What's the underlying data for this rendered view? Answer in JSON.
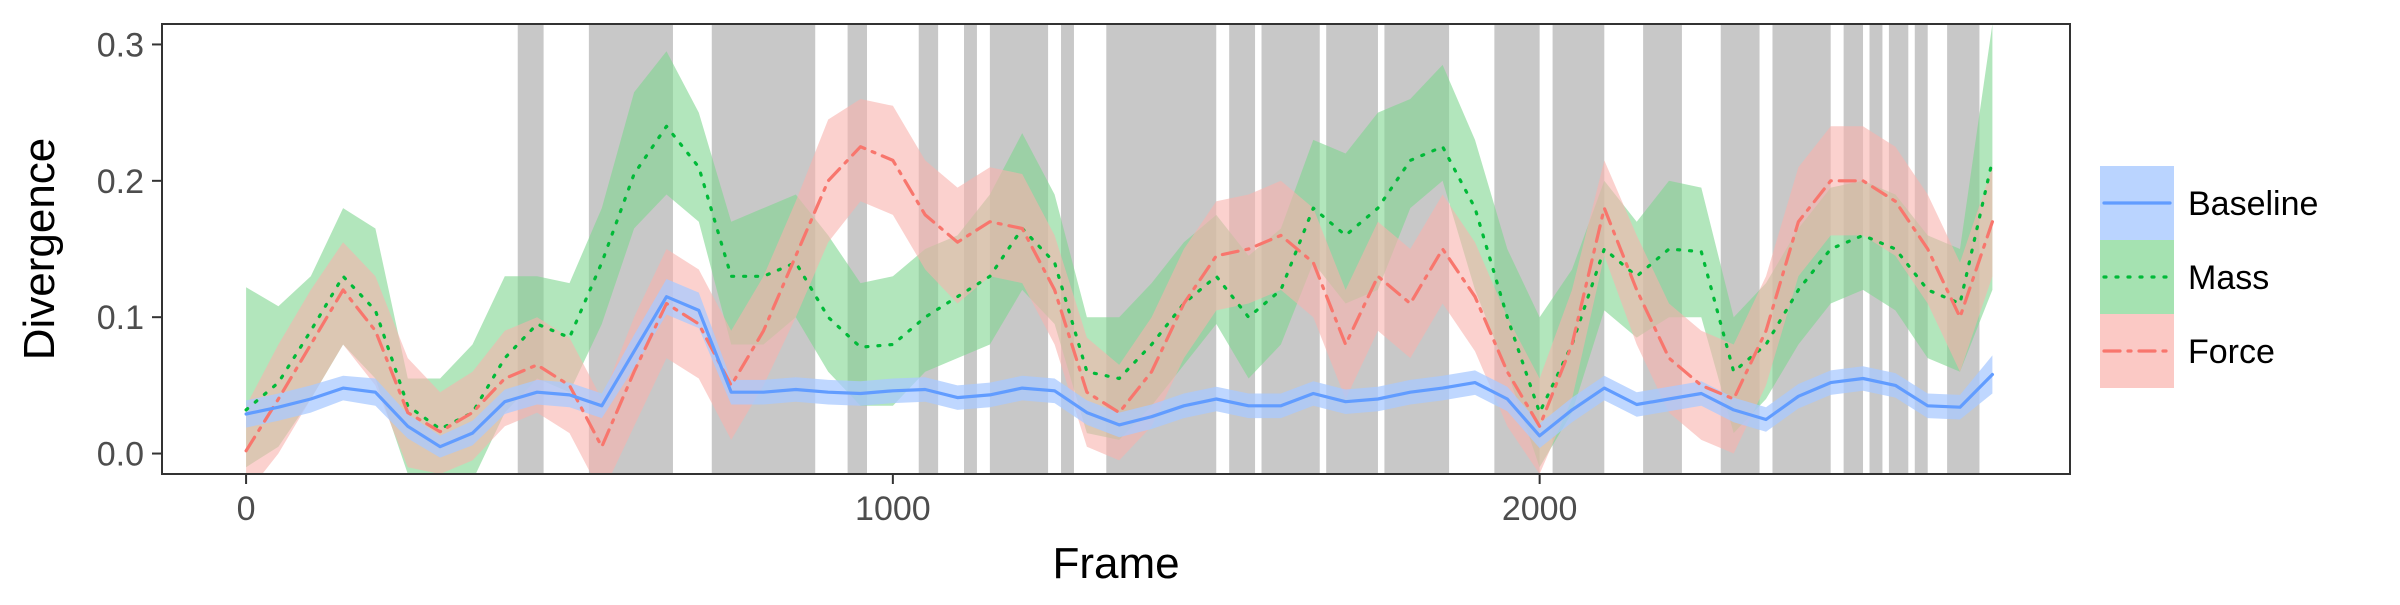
{
  "chart_data": {
    "type": "line",
    "title": "",
    "xlabel": "Frame",
    "ylabel": "Divergence",
    "xlim": [
      -130,
      2820
    ],
    "ylim": [
      -0.015,
      0.315
    ],
    "x_ticks": [
      0,
      1000,
      2000
    ],
    "y_ticks": [
      0.0,
      0.1,
      0.2,
      0.3
    ],
    "x_tick_labels": [
      "0",
      "1000",
      "2000"
    ],
    "y_tick_labels": [
      "0.0",
      "0.1",
      "0.2",
      "0.3"
    ],
    "grid": false,
    "legend_position": "right",
    "shaded_frame_intervals": [
      [
        420,
        460
      ],
      [
        530,
        660
      ],
      [
        720,
        880
      ],
      [
        930,
        960
      ],
      [
        1040,
        1070
      ],
      [
        1110,
        1130
      ],
      [
        1150,
        1240
      ],
      [
        1260,
        1280
      ],
      [
        1330,
        1500
      ],
      [
        1520,
        1560
      ],
      [
        1570,
        1660
      ],
      [
        1670,
        1750
      ],
      [
        1760,
        1860
      ],
      [
        1930,
        2000
      ],
      [
        2020,
        2100
      ],
      [
        2160,
        2220
      ],
      [
        2280,
        2340
      ],
      [
        2360,
        2450
      ],
      [
        2470,
        2500
      ],
      [
        2510,
        2530
      ],
      [
        2540,
        2570
      ],
      [
        2580,
        2600
      ],
      [
        2630,
        2680
      ]
    ],
    "x": [
      0,
      50,
      100,
      150,
      200,
      250,
      300,
      350,
      400,
      450,
      500,
      550,
      600,
      650,
      700,
      750,
      800,
      850,
      900,
      950,
      1000,
      1050,
      1100,
      1150,
      1200,
      1250,
      1300,
      1350,
      1400,
      1450,
      1500,
      1550,
      1600,
      1650,
      1700,
      1750,
      1800,
      1850,
      1900,
      1950,
      2000,
      2050,
      2100,
      2150,
      2200,
      2250,
      2300,
      2350,
      2400,
      2450,
      2500,
      2550,
      2600,
      2650,
      2700
    ],
    "series": [
      {
        "name": "Baseline",
        "color": "#619cff",
        "fill": "#a9c9ff",
        "linestyle": "solid",
        "values": [
          0.029,
          0.034,
          0.04,
          0.048,
          0.045,
          0.02,
          0.005,
          0.015,
          0.038,
          0.045,
          0.043,
          0.035,
          0.075,
          0.115,
          0.105,
          0.045,
          0.045,
          0.047,
          0.045,
          0.044,
          0.046,
          0.047,
          0.041,
          0.043,
          0.048,
          0.046,
          0.03,
          0.021,
          0.027,
          0.035,
          0.04,
          0.035,
          0.035,
          0.044,
          0.038,
          0.04,
          0.045,
          0.048,
          0.052,
          0.04,
          0.013,
          0.032,
          0.048,
          0.036,
          0.04,
          0.044,
          0.032,
          0.025,
          0.042,
          0.052,
          0.055,
          0.05,
          0.035,
          0.034,
          0.058
        ],
        "lower": [
          0.019,
          0.024,
          0.03,
          0.039,
          0.035,
          0.011,
          -0.003,
          0.006,
          0.029,
          0.036,
          0.034,
          0.026,
          0.063,
          0.102,
          0.092,
          0.036,
          0.036,
          0.038,
          0.036,
          0.035,
          0.037,
          0.038,
          0.032,
          0.034,
          0.039,
          0.037,
          0.021,
          0.012,
          0.018,
          0.026,
          0.031,
          0.026,
          0.026,
          0.035,
          0.029,
          0.031,
          0.036,
          0.039,
          0.043,
          0.031,
          0.004,
          0.023,
          0.039,
          0.027,
          0.031,
          0.035,
          0.023,
          0.016,
          0.033,
          0.043,
          0.046,
          0.041,
          0.026,
          0.025,
          0.044
        ],
        "upper": [
          0.039,
          0.044,
          0.05,
          0.057,
          0.055,
          0.029,
          0.013,
          0.024,
          0.047,
          0.054,
          0.052,
          0.044,
          0.087,
          0.128,
          0.118,
          0.054,
          0.054,
          0.056,
          0.054,
          0.053,
          0.055,
          0.056,
          0.05,
          0.052,
          0.057,
          0.055,
          0.039,
          0.03,
          0.036,
          0.044,
          0.049,
          0.044,
          0.044,
          0.053,
          0.047,
          0.049,
          0.054,
          0.057,
          0.061,
          0.049,
          0.022,
          0.041,
          0.057,
          0.045,
          0.049,
          0.053,
          0.041,
          0.034,
          0.051,
          0.061,
          0.064,
          0.059,
          0.044,
          0.043,
          0.072
        ]
      },
      {
        "name": "Mass",
        "color": "#00ba38",
        "fill": "#7fd690",
        "linestyle": "dotted",
        "values": [
          0.032,
          0.052,
          0.09,
          0.13,
          0.105,
          0.035,
          0.018,
          0.03,
          0.07,
          0.095,
          0.085,
          0.14,
          0.205,
          0.24,
          0.21,
          0.13,
          0.13,
          0.14,
          0.1,
          0.078,
          0.08,
          0.1,
          0.115,
          0.13,
          0.165,
          0.14,
          0.06,
          0.055,
          0.08,
          0.11,
          0.13,
          0.1,
          0.12,
          0.18,
          0.16,
          0.18,
          0.215,
          0.225,
          0.18,
          0.1,
          0.03,
          0.08,
          0.15,
          0.13,
          0.15,
          0.148,
          0.06,
          0.08,
          0.12,
          0.15,
          0.16,
          0.15,
          0.12,
          0.11,
          0.215
        ],
        "lower": [
          -0.01,
          0.005,
          0.04,
          0.08,
          0.055,
          -0.015,
          -0.03,
          -0.02,
          0.03,
          0.055,
          0.045,
          0.095,
          0.165,
          0.19,
          0.17,
          0.08,
          0.08,
          0.1,
          0.06,
          0.035,
          0.035,
          0.06,
          0.07,
          0.08,
          0.12,
          0.095,
          0.015,
          0.01,
          0.035,
          0.065,
          0.095,
          0.055,
          0.08,
          0.14,
          0.11,
          0.12,
          0.18,
          0.2,
          0.12,
          0.06,
          -0.01,
          0.03,
          0.105,
          0.085,
          0.1,
          0.1,
          0.015,
          0.04,
          0.08,
          0.11,
          0.12,
          0.105,
          0.07,
          0.06,
          0.12
        ],
        "upper": [
          0.122,
          0.108,
          0.13,
          0.18,
          0.165,
          0.055,
          0.055,
          0.08,
          0.13,
          0.13,
          0.125,
          0.18,
          0.265,
          0.295,
          0.25,
          0.17,
          0.18,
          0.19,
          0.16,
          0.125,
          0.13,
          0.15,
          0.16,
          0.19,
          0.235,
          0.19,
          0.1,
          0.1,
          0.125,
          0.155,
          0.175,
          0.145,
          0.165,
          0.23,
          0.22,
          0.25,
          0.26,
          0.285,
          0.23,
          0.15,
          0.1,
          0.135,
          0.2,
          0.17,
          0.2,
          0.195,
          0.1,
          0.125,
          0.165,
          0.195,
          0.2,
          0.19,
          0.16,
          0.15,
          0.315
        ]
      },
      {
        "name": "Force",
        "color": "#f8766d",
        "fill": "#f9b2ad",
        "linestyle": "dashdot",
        "values": [
          0.002,
          0.04,
          0.08,
          0.12,
          0.09,
          0.03,
          0.016,
          0.03,
          0.055,
          0.065,
          0.05,
          0.005,
          0.06,
          0.11,
          0.095,
          0.05,
          0.09,
          0.145,
          0.2,
          0.225,
          0.215,
          0.175,
          0.155,
          0.17,
          0.165,
          0.12,
          0.045,
          0.03,
          0.06,
          0.11,
          0.145,
          0.15,
          0.16,
          0.14,
          0.08,
          0.13,
          0.11,
          0.15,
          0.115,
          0.06,
          0.02,
          0.08,
          0.18,
          0.12,
          0.07,
          0.05,
          0.04,
          0.09,
          0.17,
          0.2,
          0.2,
          0.185,
          0.15,
          0.1,
          0.17
        ],
        "lower": [
          -0.03,
          0.0,
          0.04,
          0.08,
          0.05,
          -0.01,
          -0.015,
          -0.005,
          0.02,
          0.03,
          0.015,
          -0.03,
          0.02,
          0.07,
          0.055,
          0.01,
          0.05,
          0.1,
          0.155,
          0.185,
          0.175,
          0.135,
          0.11,
          0.13,
          0.125,
          0.08,
          0.005,
          -0.005,
          0.02,
          0.07,
          0.105,
          0.11,
          0.12,
          0.1,
          0.04,
          0.09,
          0.07,
          0.11,
          0.075,
          0.02,
          -0.015,
          0.04,
          0.145,
          0.08,
          0.03,
          0.01,
          0.0,
          0.05,
          0.13,
          0.16,
          0.16,
          0.145,
          0.11,
          0.06,
          0.13
        ],
        "upper": [
          0.035,
          0.08,
          0.12,
          0.155,
          0.13,
          0.07,
          0.045,
          0.06,
          0.09,
          0.1,
          0.085,
          0.04,
          0.1,
          0.15,
          0.135,
          0.09,
          0.13,
          0.185,
          0.245,
          0.26,
          0.255,
          0.215,
          0.195,
          0.21,
          0.205,
          0.16,
          0.085,
          0.065,
          0.1,
          0.15,
          0.185,
          0.19,
          0.2,
          0.18,
          0.12,
          0.17,
          0.15,
          0.19,
          0.155,
          0.1,
          0.055,
          0.12,
          0.215,
          0.16,
          0.11,
          0.09,
          0.08,
          0.13,
          0.21,
          0.24,
          0.24,
          0.225,
          0.19,
          0.14,
          0.21
        ]
      }
    ]
  }
}
